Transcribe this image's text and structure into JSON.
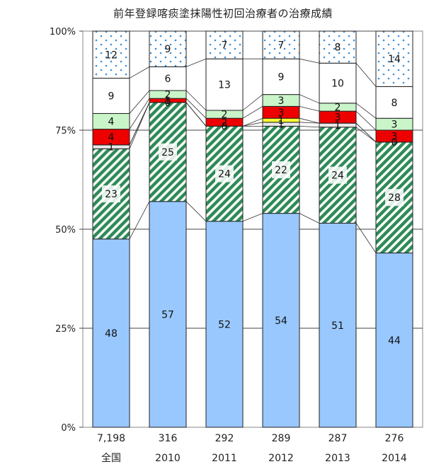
{
  "chart_data": {
    "type": "bar",
    "stacked": true,
    "title": "前年登録喀痰塗抹陽性初回治療者の治療成績",
    "yticks": [
      "0%",
      "25%",
      "50%",
      "75%",
      "100%"
    ],
    "ylim": [
      0,
      100
    ],
    "grid": true,
    "categories": [
      {
        "count": "7,198",
        "label": "全国"
      },
      {
        "count": "316",
        "label": "2010"
      },
      {
        "count": "292",
        "label": "2011"
      },
      {
        "count": "289",
        "label": "2012"
      },
      {
        "count": "287",
        "label": "2013"
      },
      {
        "count": "276",
        "label": "2014"
      }
    ],
    "series": [
      {
        "color": "#99c8ff",
        "pattern": "solid",
        "values": [
          48,
          57,
          52,
          54,
          51,
          44
        ]
      },
      {
        "color": "#2e8b57",
        "pattern": "diagonal-hatch",
        "values": [
          23,
          25,
          24,
          22,
          24,
          28
        ]
      },
      {
        "color": "#e8e8e8",
        "pattern": "solid",
        "values": [
          1,
          0,
          0,
          1,
          1,
          0
        ]
      },
      {
        "color": "#ffff33",
        "pattern": "solid",
        "values": [
          0,
          0,
          0,
          1,
          0,
          0
        ]
      },
      {
        "color": "#ee0000",
        "pattern": "solid",
        "values": [
          4,
          1,
          2,
          3,
          3,
          3
        ]
      },
      {
        "color": "#c9f5c9",
        "pattern": "solid",
        "values": [
          4,
          2,
          2,
          3,
          2,
          3
        ]
      },
      {
        "color": "#ffffff",
        "pattern": "solid",
        "values": [
          9,
          6,
          13,
          9,
          10,
          8
        ]
      },
      {
        "color": "#3d8fd6",
        "pattern": "dotted",
        "values": [
          12,
          9,
          7,
          7,
          8,
          14
        ]
      }
    ],
    "labels": [
      [
        "48",
        "57",
        "52",
        "54",
        "51",
        "44"
      ],
      [
        "23",
        "25",
        "24",
        "22",
        "24",
        "28"
      ],
      [
        "1",
        "0",
        "0",
        "1",
        "1",
        "0"
      ],
      [
        "",
        "",
        "",
        "1",
        "",
        ""
      ],
      [
        "4",
        "1",
        "2",
        "3",
        "3",
        "3"
      ],
      [
        "4",
        "2",
        "2",
        "3",
        "2",
        "3"
      ],
      [
        "9",
        "6",
        "13",
        "9",
        "10",
        "8"
      ],
      [
        "12",
        "9",
        "7",
        "7",
        "8",
        "14"
      ]
    ]
  }
}
